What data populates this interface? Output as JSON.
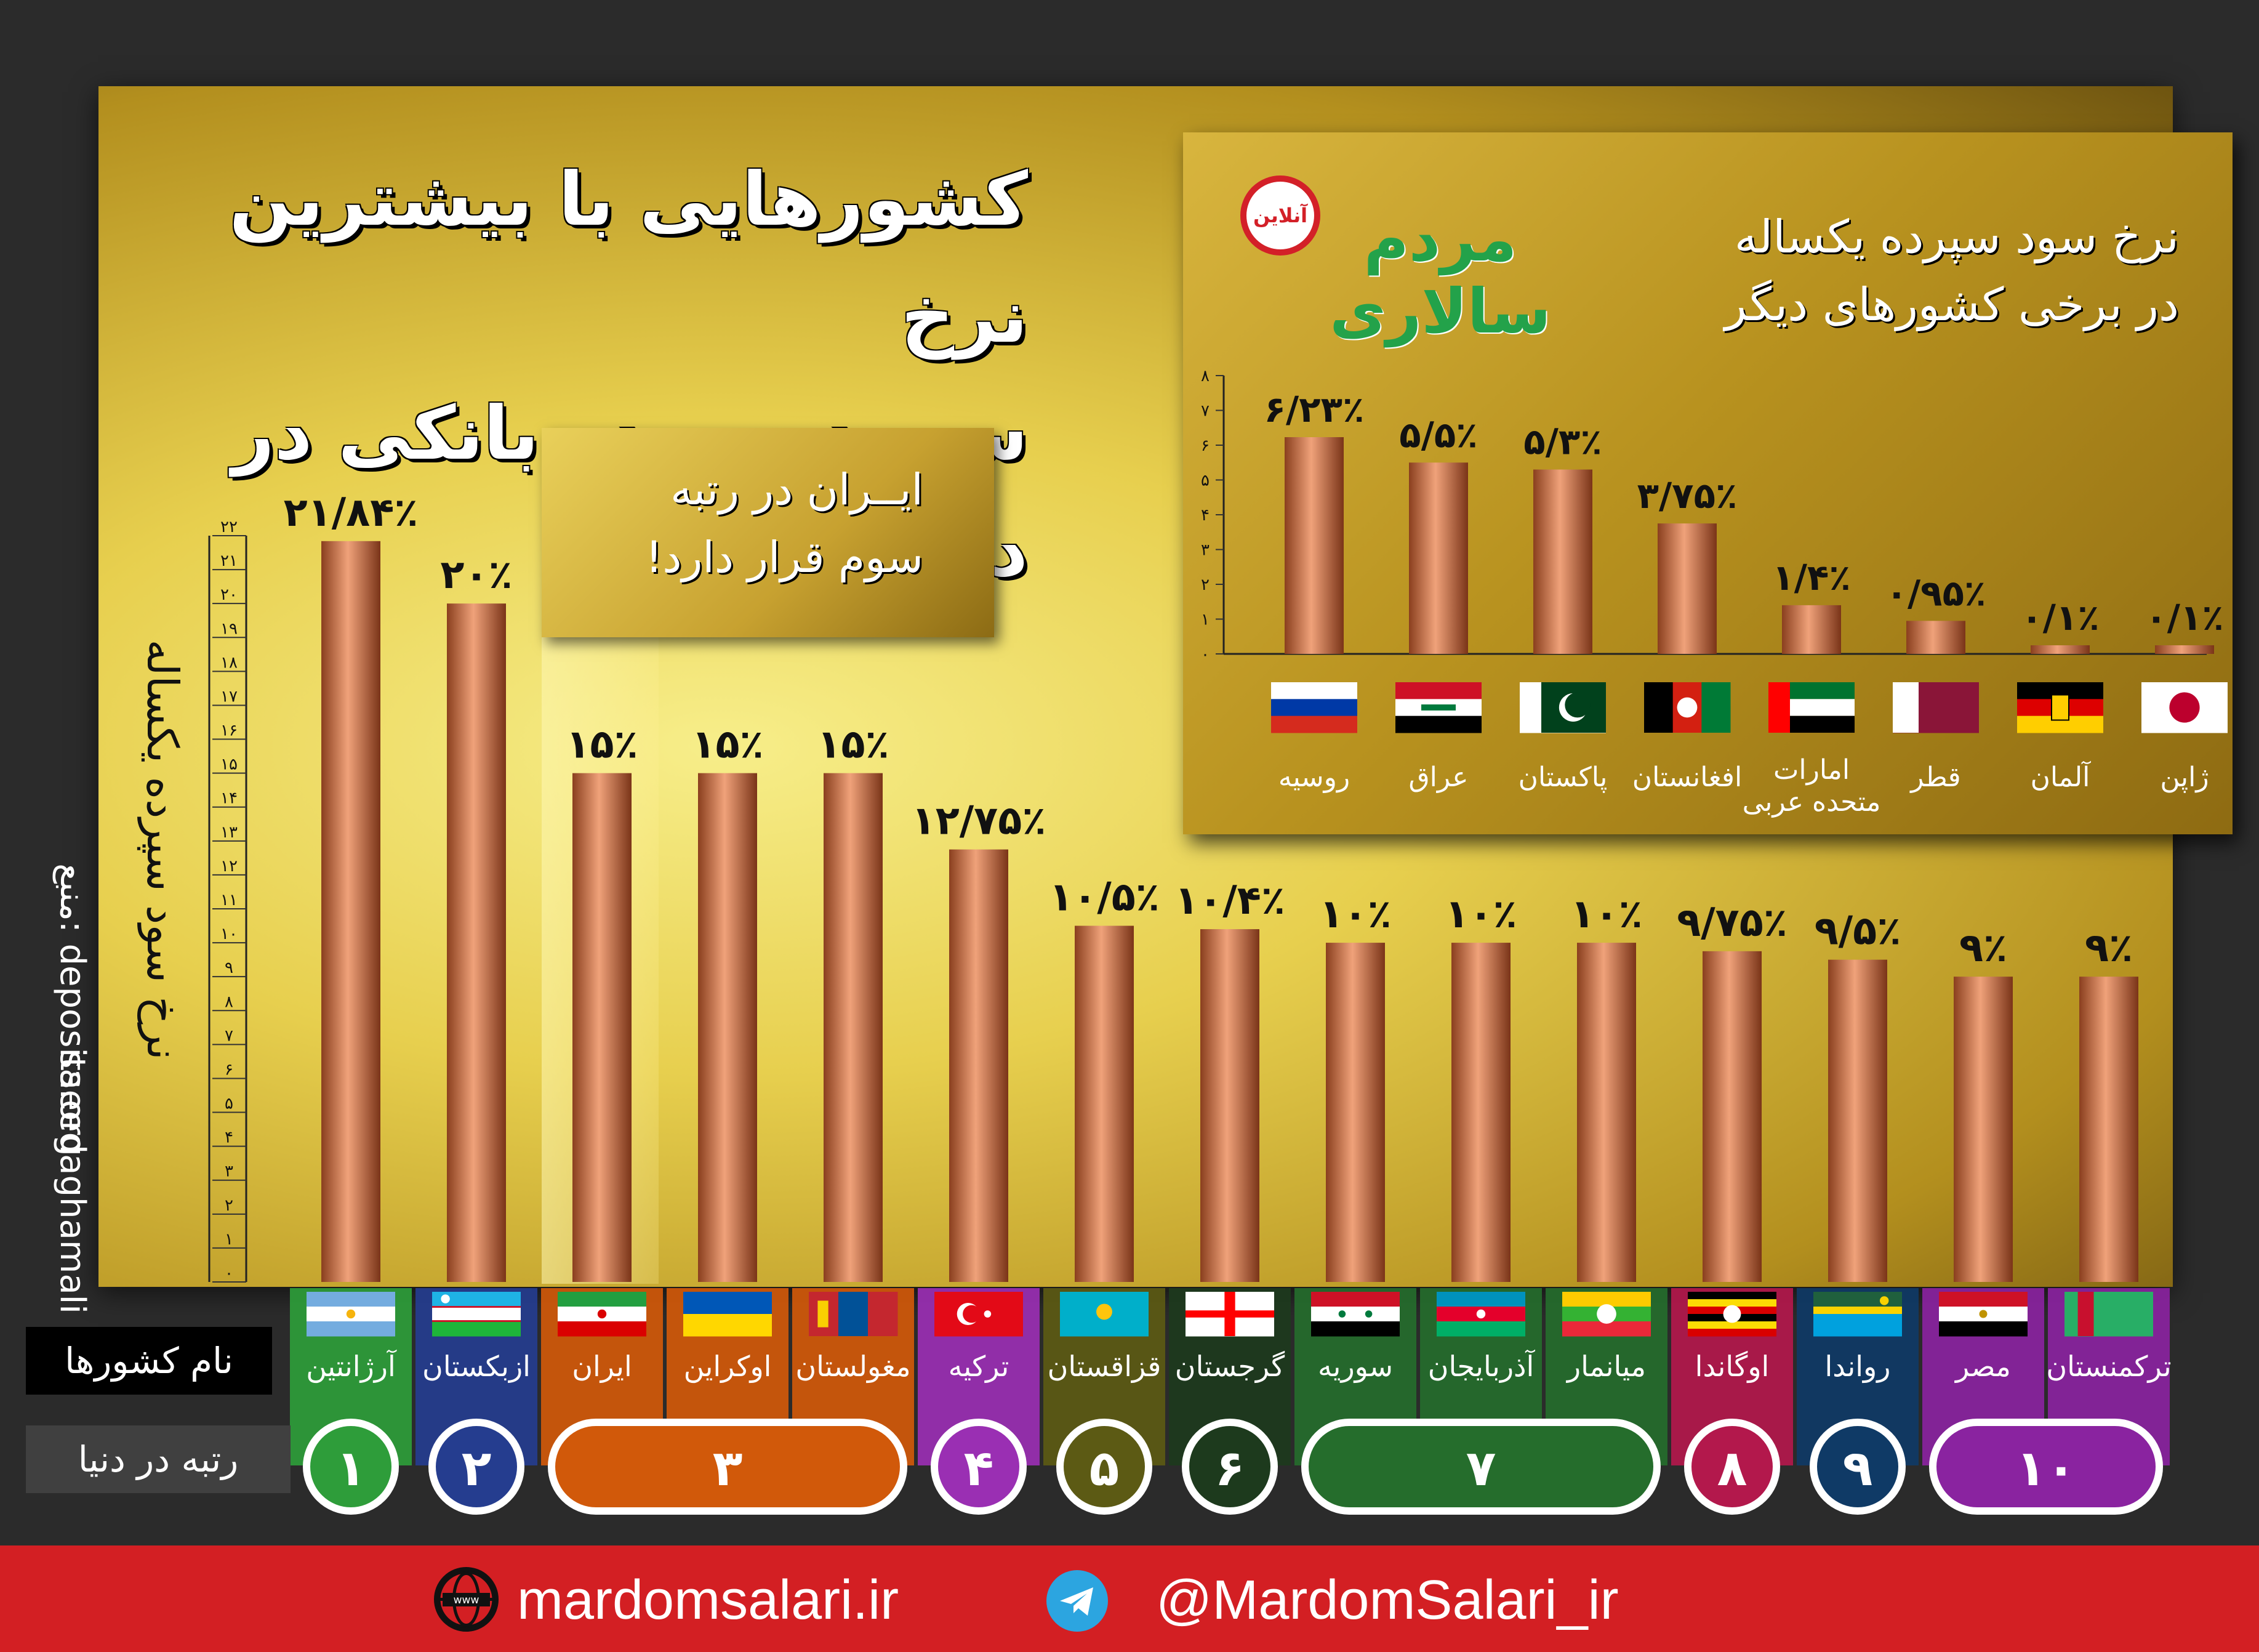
{
  "title": {
    "line1": "کشورهایی با بیشترین نرخ",
    "line2": "ســود سپرده بانکی در دنیا"
  },
  "note": {
    "line1": "ایــران در رتبه",
    "line2": "سوم قرار دارد!"
  },
  "y_axis_label": "نرخ سود سپرده یکساله",
  "source": "منبع: deposits.org",
  "credit": "saeedaghamali",
  "row_labels": {
    "names": "نام کشورها",
    "rank": "رتبه در دنیا"
  },
  "logo": {
    "text": "مردم سالاری",
    "seal": "آنلاین"
  },
  "inset_title": {
    "line1": "نرخ سود سپرده یکساله",
    "line2": "در برخی کشورهای دیگر"
  },
  "footer": {
    "website": "mardomsalari.ir",
    "telegram": "@MardomSalari_ir",
    "globe_icon": "www-globe-icon",
    "telegram_icon": "telegram-icon"
  },
  "colors": {
    "bar": "#c9744a",
    "footer": "#d31f23",
    "rank1": "#2e9d3a",
    "rank2": "#253d8f",
    "rank3": "#d1590a",
    "rank4": "#9a2fb3",
    "rank5": "#5c5a14",
    "rank6": "#1d3a1d",
    "rank7": "#256d2c",
    "rank8": "#b3184c",
    "rank9": "#0f3a66",
    "rank10": "#8a23a0"
  },
  "chart_data": [
    {
      "type": "bar",
      "y_axis_label": "نرخ سود سپرده یکساله",
      "ylim": [
        0,
        22
      ],
      "y_ticks": [
        "۰",
        "۱",
        "۲",
        "۳",
        "۴",
        "۵",
        "۶",
        "۷",
        "۸",
        "۹",
        "۱۰",
        "۱۱",
        "۱۲",
        "۱۳",
        "۱۴",
        "۱۵",
        "۱۶",
        "۱۷",
        "۱۸",
        "۱۹",
        "۲۰",
        "۲۱",
        "۲۲"
      ],
      "categories": [
        "آرژانتین",
        "ازبکستان",
        "ایران",
        "اوکراین",
        "مغولستان",
        "ترکیه",
        "قزاقستان",
        "گرجستان",
        "سوریه",
        "آذربایجان",
        "میانمار",
        "اوگاندا",
        "رواندا",
        "مصر",
        "ترکمنستان"
      ],
      "values": [
        21.84,
        20,
        15,
        15,
        15,
        12.75,
        10.5,
        10.4,
        10,
        10,
        10,
        9.75,
        9.5,
        9,
        9
      ],
      "value_labels": [
        "۲۱/۸۴٪",
        "۲۰٪",
        "۱۵٪",
        "۱۵٪",
        "۱۵٪",
        "۱۲/۷۵٪",
        "۱۰/۵٪",
        "۱۰/۴٪",
        "۱۰٪",
        "۱۰٪",
        "۱۰٪",
        "۹/۷۵٪",
        "۹/۵٪",
        "۹٪",
        "۹٪"
      ],
      "flags": [
        "argentina",
        "uzbekistan",
        "iran",
        "ukraine",
        "mongolia",
        "turkey",
        "kazakhstan",
        "georgia",
        "syria",
        "azerbaijan",
        "myanmar",
        "uganda",
        "rwanda",
        "egypt",
        "turkmenistan"
      ],
      "ranks": [
        {
          "rank": "۱",
          "members": [
            "آرژانتین"
          ],
          "color": "#2e9d3a"
        },
        {
          "rank": "۲",
          "members": [
            "ازبکستان"
          ],
          "color": "#253d8f"
        },
        {
          "rank": "۳",
          "members": [
            "ایران",
            "اوکراین",
            "مغولستان"
          ],
          "color": "#d1590a"
        },
        {
          "rank": "۴",
          "members": [
            "ترکیه"
          ],
          "color": "#9a2fb3"
        },
        {
          "rank": "۵",
          "members": [
            "قزاقستان"
          ],
          "color": "#5c5a14"
        },
        {
          "rank": "۶",
          "members": [
            "گرجستان"
          ],
          "color": "#1d3a1d"
        },
        {
          "rank": "۷",
          "members": [
            "سوریه",
            "آذربایجان",
            "میانمار"
          ],
          "color": "#256d2c"
        },
        {
          "rank": "۸",
          "members": [
            "اوگاندا"
          ],
          "color": "#b3184c"
        },
        {
          "rank": "۹",
          "members": [
            "رواندا"
          ],
          "color": "#0f3a66"
        },
        {
          "rank": "۱۰",
          "members": [
            "مصر",
            "ترکمنستان"
          ],
          "color": "#8a23a0"
        }
      ]
    },
    {
      "type": "bar",
      "title": "نرخ سود سپرده یکساله در برخی کشورهای دیگر",
      "ylim": [
        0,
        8
      ],
      "y_ticks": [
        "۰",
        "۱",
        "۲",
        "۳",
        "۴",
        "۵",
        "۶",
        "۷",
        "۸"
      ],
      "categories": [
        "روسیه",
        "عراق",
        "پاکستان",
        "افغانستان",
        "امارات متحده عربی",
        "قطر",
        "آلمان",
        "ژاپن"
      ],
      "category_lines": [
        [
          "روسیه"
        ],
        [
          "عراق"
        ],
        [
          "پاکستان"
        ],
        [
          "افغانستان"
        ],
        [
          "امارات",
          "متحده عربی"
        ],
        [
          "قطر"
        ],
        [
          "آلمان"
        ],
        [
          "ژاپن"
        ]
      ],
      "values": [
        6.23,
        5.5,
        5.3,
        3.75,
        1.4,
        0.95,
        0.1,
        0.1
      ],
      "value_labels": [
        "۶/۲۳٪",
        "۵/۵٪",
        "۵/۳٪",
        "۳/۷۵٪",
        "۱/۴٪",
        "۰/۹۵٪",
        "۰/۱٪",
        "۰/۱٪"
      ],
      "flags": [
        "russia",
        "iraq",
        "pakistan",
        "afghanistan",
        "uae",
        "qatar",
        "germany",
        "japan"
      ]
    }
  ]
}
